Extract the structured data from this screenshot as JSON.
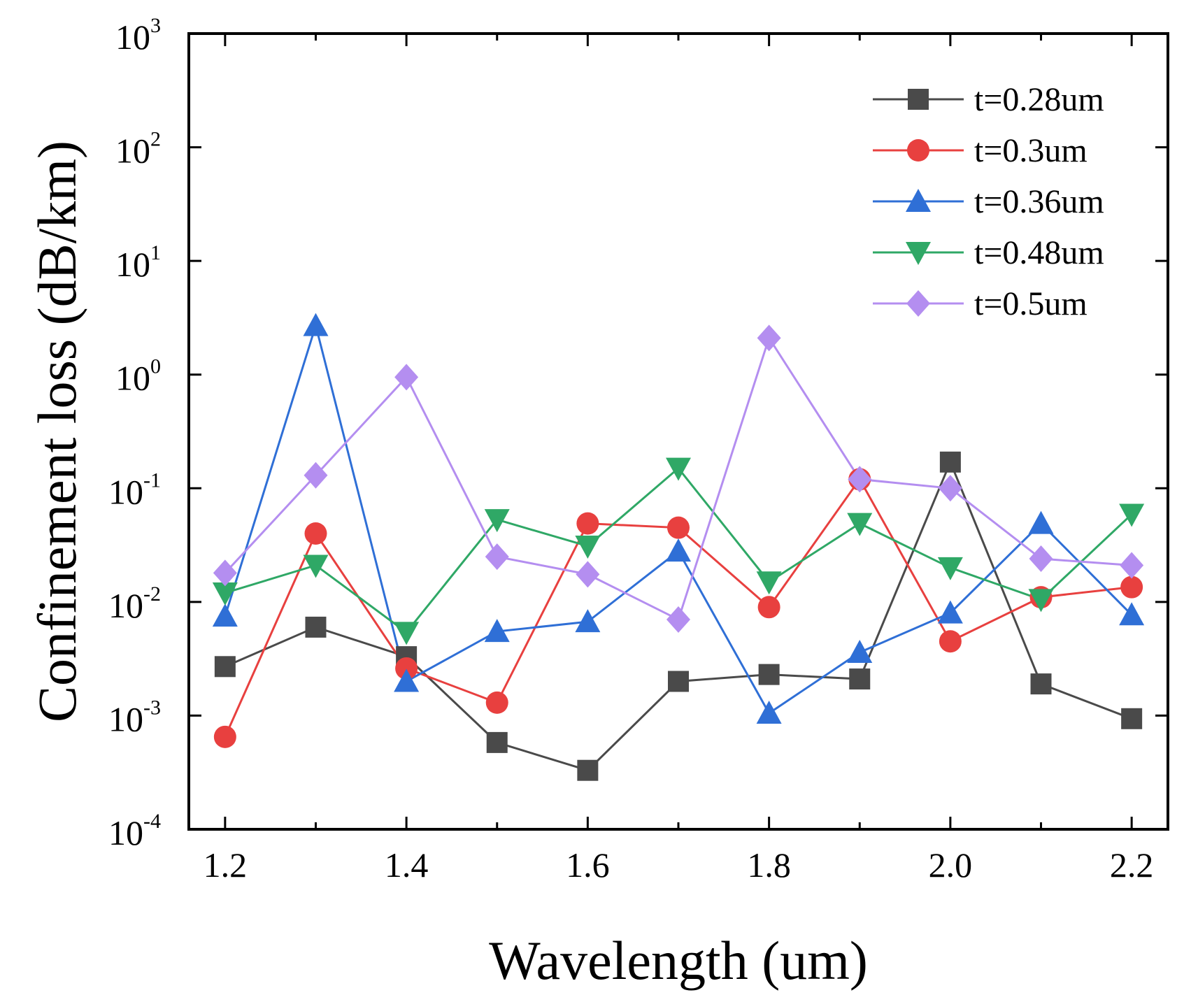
{
  "chart_data": {
    "type": "line",
    "title": "",
    "xlabel": "Wavelength (um)",
    "ylabel": "Confinement loss (dB/km)",
    "xlim": [
      1.16,
      2.24
    ],
    "ylim": [
      0.0001,
      1000
    ],
    "yscale": "log",
    "grid": false,
    "legend_position": "top-right",
    "x": [
      1.2,
      1.3,
      1.4,
      1.5,
      1.6,
      1.7,
      1.8,
      1.9,
      2.0,
      2.1,
      2.2
    ],
    "x_ticks": [
      {
        "value": 1.2,
        "label": "1.2"
      },
      {
        "value": 1.4,
        "label": "1.4"
      },
      {
        "value": 1.6,
        "label": "1.6"
      },
      {
        "value": 1.8,
        "label": "1.8"
      },
      {
        "value": 2.0,
        "label": "2.0"
      },
      {
        "value": 2.2,
        "label": "2.2"
      }
    ],
    "y_ticks": [
      {
        "value": 0.0001,
        "base": "10",
        "exp": "-4"
      },
      {
        "value": 0.001,
        "base": "10",
        "exp": "-3"
      },
      {
        "value": 0.01,
        "base": "10",
        "exp": "-2"
      },
      {
        "value": 0.1,
        "base": "10",
        "exp": "-1"
      },
      {
        "value": 1,
        "base": "10",
        "exp": "0"
      },
      {
        "value": 10,
        "base": "10",
        "exp": "1"
      },
      {
        "value": 100,
        "base": "10",
        "exp": "2"
      },
      {
        "value": 1000,
        "base": "10",
        "exp": "3"
      }
    ],
    "series": [
      {
        "name": "t=0.28um",
        "color": "#4a4a4a",
        "marker": "square",
        "values": [
          0.0027,
          0.006,
          0.0033,
          0.00058,
          0.00033,
          0.002,
          0.0023,
          0.0021,
          0.17,
          0.0019,
          0.00094
        ]
      },
      {
        "name": "t=0.3um",
        "color": "#e8403f",
        "marker": "circle",
        "values": [
          0.00065,
          0.04,
          0.0026,
          0.0013,
          0.049,
          0.045,
          0.009,
          0.12,
          0.0045,
          0.011,
          0.0135
        ]
      },
      {
        "name": "t=0.36um",
        "color": "#2f6fd6",
        "marker": "triangle-up",
        "values": [
          0.0075,
          2.7,
          0.002,
          0.0055,
          0.0067,
          0.028,
          0.00105,
          0.0036,
          0.008,
          0.049,
          0.0077
        ]
      },
      {
        "name": "t=0.48um",
        "color": "#2fa866",
        "marker": "triangle-down",
        "values": [
          0.012,
          0.021,
          0.0054,
          0.053,
          0.031,
          0.15,
          0.015,
          0.049,
          0.02,
          0.0105,
          0.059
        ]
      },
      {
        "name": "t=0.5um",
        "color": "#b48ef0",
        "marker": "diamond",
        "values": [
          0.018,
          0.13,
          0.95,
          0.025,
          0.0175,
          0.007,
          2.1,
          0.12,
          0.1,
          0.024,
          0.021
        ]
      }
    ]
  }
}
